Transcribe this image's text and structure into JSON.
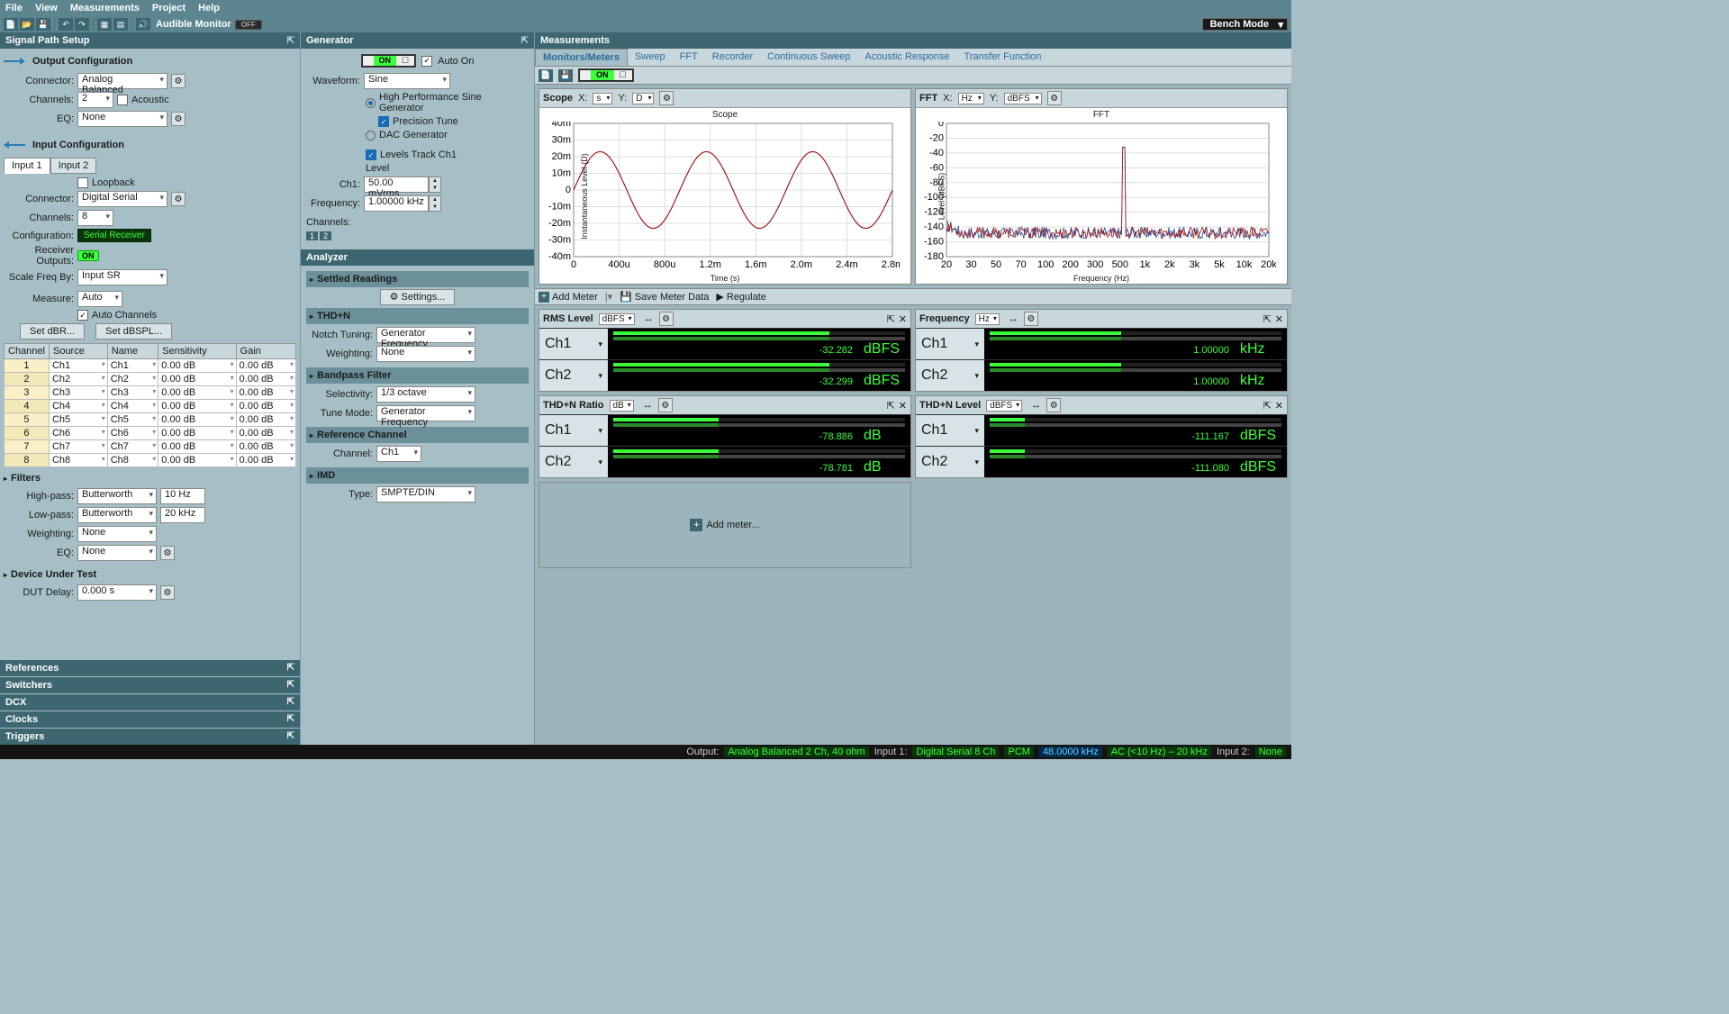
{
  "menu": {
    "items": [
      "File",
      "View",
      "Measurements",
      "Project",
      "Help"
    ]
  },
  "toolbar": {
    "audible": "Audible Monitor",
    "mode": "Bench Mode",
    "off": "OFF"
  },
  "sig": {
    "title": "Signal Path Setup",
    "out": {
      "hdr": "Output Configuration",
      "connector_lbl": "Connector:",
      "connector": "Analog Balanced",
      "channels_lbl": "Channels:",
      "channels": "2",
      "acoustic": "Acoustic",
      "eq_lbl": "EQ:",
      "eq": "None"
    },
    "in": {
      "hdr": "Input Configuration",
      "tab1": "Input 1",
      "tab2": "Input 2",
      "loopback": "Loopback",
      "connector_lbl": "Connector:",
      "connector": "Digital Serial",
      "channels_lbl": "Channels:",
      "channels": "8",
      "config_lbl": "Configuration:",
      "config": "Serial Receiver",
      "recv_lbl": "Receiver Outputs:",
      "recv_on": "ON",
      "scale_lbl": "Scale Freq By:",
      "scale": "Input SR",
      "measure_lbl": "Measure:",
      "measure": "Auto",
      "autoch": "Auto Channels",
      "setdbr": "Set dBR...",
      "setdbspl": "Set dBSPL..."
    },
    "ch_tbl": {
      "cols": [
        "Channel",
        "Source",
        "Name",
        "Sensitivity",
        "Gain"
      ],
      "rows": [
        [
          "1",
          "Ch1",
          "Ch1",
          "0.00 dB",
          "0.00 dB"
        ],
        [
          "2",
          "Ch2",
          "Ch2",
          "0.00 dB",
          "0.00 dB"
        ],
        [
          "3",
          "Ch3",
          "Ch3",
          "0.00 dB",
          "0.00 dB"
        ],
        [
          "4",
          "Ch4",
          "Ch4",
          "0.00 dB",
          "0.00 dB"
        ],
        [
          "5",
          "Ch5",
          "Ch5",
          "0.00 dB",
          "0.00 dB"
        ],
        [
          "6",
          "Ch6",
          "Ch6",
          "0.00 dB",
          "0.00 dB"
        ],
        [
          "7",
          "Ch7",
          "Ch7",
          "0.00 dB",
          "0.00 dB"
        ],
        [
          "8",
          "Ch8",
          "Ch8",
          "0.00 dB",
          "0.00 dB"
        ]
      ]
    },
    "filters": {
      "hdr": "Filters",
      "hp_lbl": "High-pass:",
      "hp_type": "Butterworth",
      "hp_val": "10 Hz",
      "lp_lbl": "Low-pass:",
      "lp_type": "Butterworth",
      "lp_val": "20 kHz",
      "wt_lbl": "Weighting:",
      "wt": "None",
      "eq_lbl": "EQ:",
      "eq": "None"
    },
    "dut": {
      "hdr": "Device Under Test",
      "delay_lbl": "DUT Delay:",
      "delay": "0.000 s"
    },
    "collapsed": [
      "References",
      "Switchers",
      "DCX",
      "Clocks",
      "Triggers"
    ]
  },
  "gen": {
    "title": "Generator",
    "autoon": "Auto On",
    "on": "ON",
    "wave_lbl": "Waveform:",
    "wave": "Sine",
    "hp": "High Performance Sine Generator",
    "prec": "Precision Tune",
    "dac": "DAC Generator",
    "track": "Levels Track Ch1",
    "level_lbl": "Level",
    "ch1_lbl": "Ch1:",
    "ch1": "50.00 mVrms",
    "freq_lbl": "Frequency:",
    "freq": "1.00000 kHz",
    "channels_lbl": "Channels:"
  },
  "ana": {
    "title": "Analyzer",
    "settled": "Settled Readings",
    "settings": "Settings...",
    "thdn": "THD+N",
    "notch_lbl": "Notch Tuning:",
    "notch": "Generator Frequency",
    "wt_lbl": "Weighting:",
    "wt": "None",
    "bp": "Bandpass Filter",
    "sel_lbl": "Selectivity:",
    "sel": "1/3 octave",
    "tune_lbl": "Tune Mode:",
    "tune": "Generator Frequency",
    "ref": "Reference Channel",
    "ch_lbl": "Channel:",
    "ch": "Ch1",
    "imd": "IMD",
    "type_lbl": "Type:",
    "type": "SMPTE/DIN"
  },
  "meas": {
    "title": "Measurements",
    "tabs": [
      "Monitors/Meters",
      "Sweep",
      "FFT",
      "Recorder",
      "Continuous Sweep",
      "Acoustic Response",
      "Transfer Function"
    ]
  },
  "scope": {
    "title": "Scope",
    "x_lbl": "X:",
    "x_unit": "s",
    "y_lbl": "Y:",
    "y_unit": "D",
    "chart_title": "Scope",
    "ylabel": "Instantaneous Level (D)",
    "xlabel": "Time (s)",
    "yticks": [
      "40m",
      "30m",
      "20m",
      "10m",
      "0",
      "-10m",
      "-20m",
      "-30m",
      "-40m"
    ],
    "xticks": [
      "0",
      "400u",
      "800u",
      "1.2m",
      "1.6m",
      "2.0m",
      "2.4m",
      "2.8m"
    ],
    "line_color": "#9e1b1b",
    "amplitude": 23,
    "cycles": 3
  },
  "fft": {
    "title": "FFT",
    "x_lbl": "X:",
    "x_unit": "Hz",
    "y_lbl": "Y:",
    "y_unit": "dBFS",
    "chart_title": "FFT",
    "ylabel": "Level (dBFS)",
    "xlabel": "Frequency (Hz)",
    "yticks": [
      "0",
      "-20",
      "-40",
      "-60",
      "-80",
      "-100",
      "-120",
      "-140",
      "-160",
      "-180"
    ],
    "xticks": [
      "20",
      "30",
      "50",
      "70",
      "100",
      "200",
      "300",
      "500",
      "1k",
      "2k",
      "3k",
      "5k",
      "10k",
      "20k"
    ],
    "colors": {
      "ch1": "#9e1b1b",
      "ch2": "#1b4b9e"
    },
    "noise_floor": -148,
    "peak_freq_frac": 0.55,
    "peak_level": -32
  },
  "meter_tb": {
    "add": "Add Meter",
    "save": "Save Meter Data",
    "reg": "Regulate"
  },
  "meters": [
    {
      "name": "RMS Level",
      "unit": "dBFS",
      "rows": [
        {
          "ch": "Ch1",
          "val": "-32.282",
          "u": "dBFS",
          "bar": 74
        },
        {
          "ch": "Ch2",
          "val": "-32.299",
          "u": "dBFS",
          "bar": 74
        }
      ]
    },
    {
      "name": "Frequency",
      "unit": "Hz",
      "rows": [
        {
          "ch": "Ch1",
          "val": "1.00000",
          "u": "kHz",
          "bar": 45
        },
        {
          "ch": "Ch2",
          "val": "1.00000",
          "u": "kHz",
          "bar": 45
        }
      ]
    },
    {
      "name": "THD+N Ratio",
      "unit": "dB",
      "rows": [
        {
          "ch": "Ch1",
          "val": "-78.886",
          "u": "dB",
          "bar": 36
        },
        {
          "ch": "Ch2",
          "val": "-78.781",
          "u": "dB",
          "bar": 36
        }
      ]
    },
    {
      "name": "THD+N Level",
      "unit": "dBFS",
      "rows": [
        {
          "ch": "Ch1",
          "val": "-111.167",
          "u": "dBFS",
          "bar": 12
        },
        {
          "ch": "Ch2",
          "val": "-111.080",
          "u": "dBFS",
          "bar": 12
        }
      ]
    }
  ],
  "add_meter": "Add meter...",
  "status": {
    "out_lbl": "Output:",
    "out": "Analog Balanced 2 Ch, 40 ohm",
    "in1_lbl": "Input 1:",
    "in1a": "Digital Serial 8 Ch",
    "in1b": "PCM",
    "in1c": "48.0000 kHz",
    "in1d": "AC (<10 Hz) – 20 kHz",
    "in2_lbl": "Input 2:",
    "in2": "None"
  }
}
